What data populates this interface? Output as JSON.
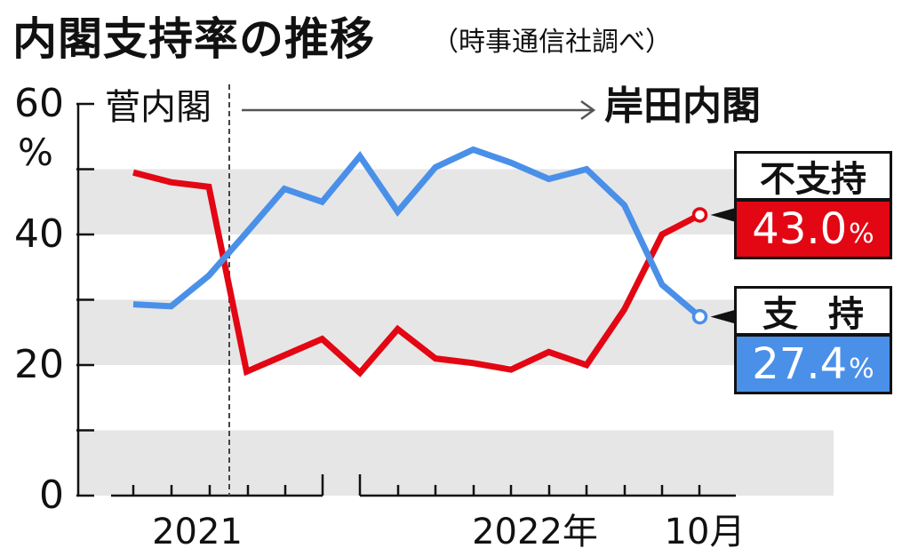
{
  "header": {
    "title": "内閣支持率の推移",
    "source": "（時事通信社調べ）"
  },
  "legend": {
    "oppose": {
      "label": "不支持",
      "value": "43.0",
      "unit": "%"
    },
    "support": {
      "label": "支持",
      "value": "27.4",
      "unit": "%"
    }
  },
  "colors": {
    "oppose": "#e30613",
    "support": "#4a90e8",
    "band": "#e6e6e6"
  },
  "chart_data": {
    "type": "line",
    "ylim": [
      0,
      60
    ],
    "yticks": [
      "60",
      "40",
      "20",
      "0"
    ],
    "yunit": "%",
    "x": [
      0,
      1,
      2,
      3,
      4,
      5,
      6,
      7,
      8,
      9,
      10,
      11,
      12,
      13,
      14,
      15
    ],
    "xlabels": [
      "2021",
      "2022年",
      "10月"
    ],
    "period_labels": {
      "left": "菅内閣",
      "right": "岸田内閣"
    },
    "series": [
      {
        "name": "不支持",
        "values": [
          49.5,
          48.0,
          47.3,
          19.0,
          21.5,
          24.0,
          18.8,
          25.5,
          21.0,
          20.3,
          19.3,
          22.0,
          20.0,
          28.5,
          40.0,
          43.0
        ]
      },
      {
        "name": "支持",
        "values": [
          29.3,
          29.0,
          33.7,
          40.3,
          47.0,
          45.0,
          52.0,
          43.5,
          50.3,
          53.0,
          51.0,
          48.5,
          50.0,
          44.5,
          32.3,
          27.4
        ]
      }
    ]
  }
}
